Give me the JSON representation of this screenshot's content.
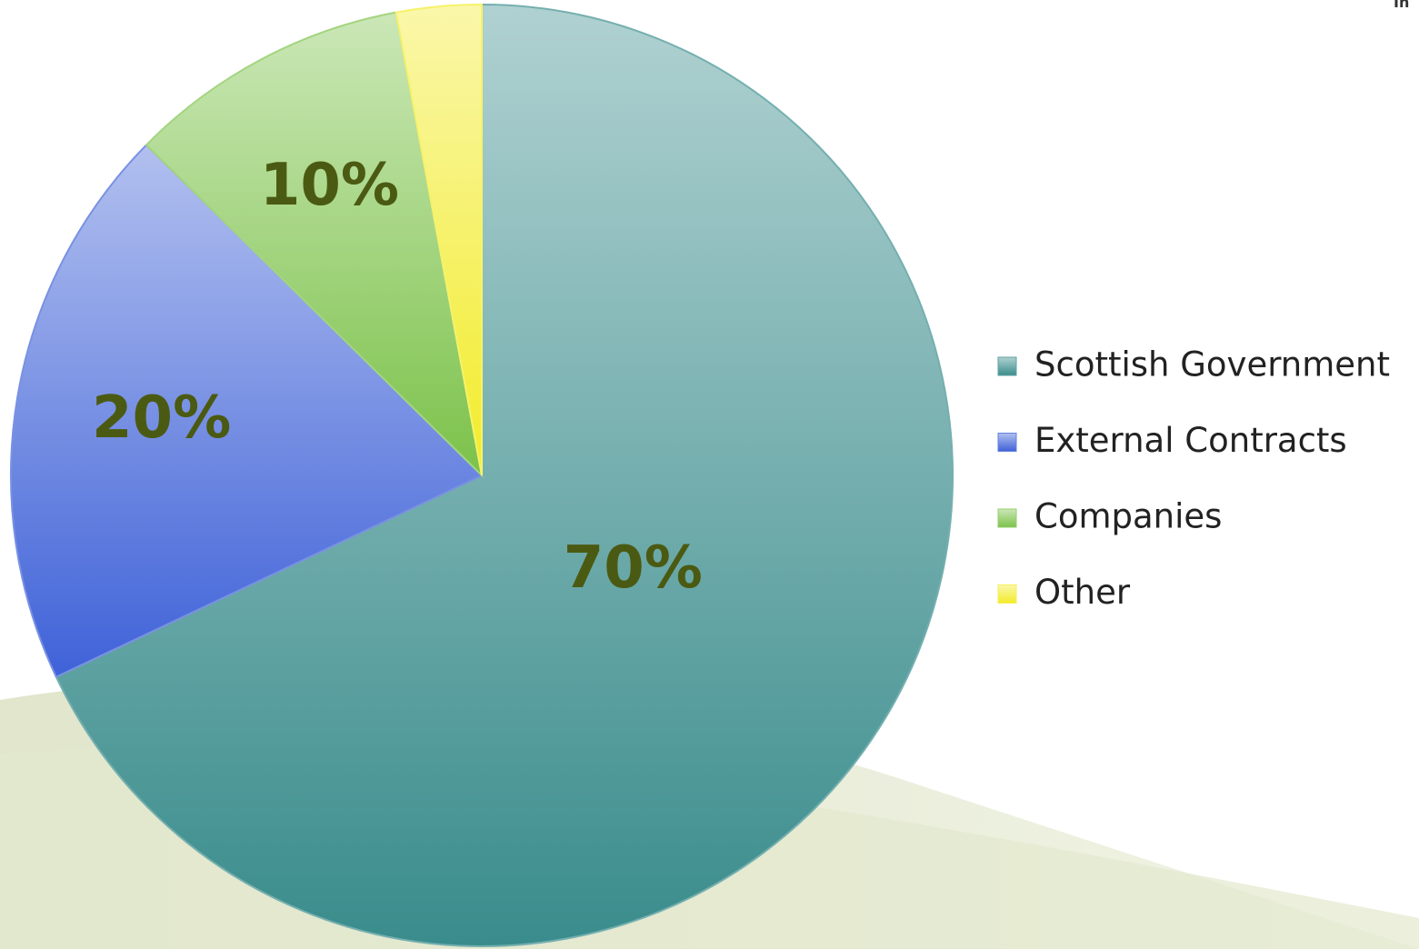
{
  "corner_text": "In",
  "chart_data": {
    "type": "pie",
    "categories": [
      "Scottish Government",
      "External Contracts",
      "Companies",
      "Other"
    ],
    "values": [
      70,
      20,
      10,
      3
    ],
    "value_labels": [
      "70%",
      "20%",
      "10%",
      null
    ],
    "colors": [
      "#3a8c8c",
      "#3f62d8",
      "#7cc24a",
      "#f2ec2a"
    ],
    "legend": "right"
  }
}
